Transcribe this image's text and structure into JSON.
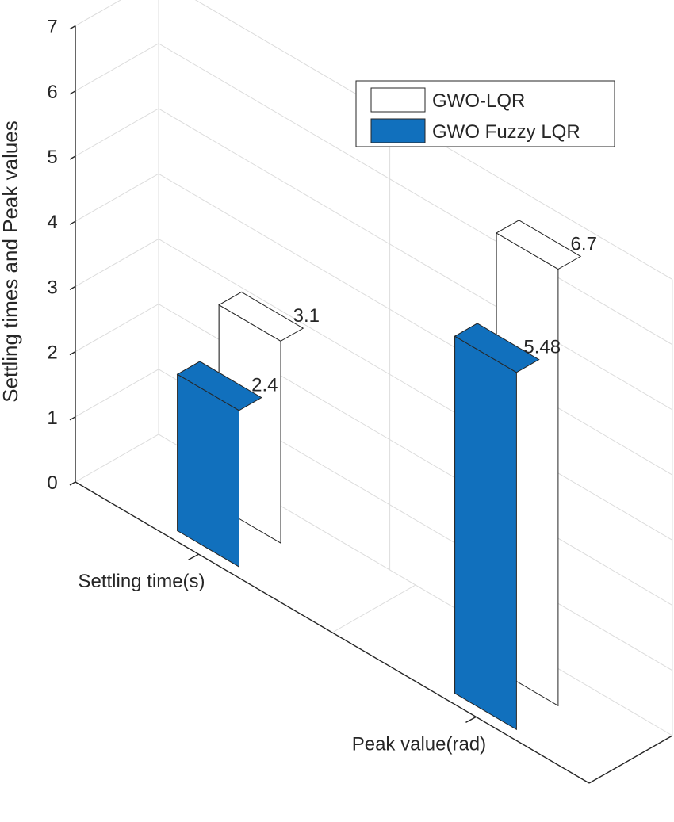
{
  "chart_data": {
    "type": "bar",
    "subtype": "3d-grouped",
    "title": "",
    "xlabel": "",
    "ylabel": "Settling times and Peak values",
    "categories": [
      "Settling time(s)",
      "Peak value(rad)"
    ],
    "series": [
      {
        "name": "GWO-LQR",
        "values": [
          3.1,
          6.7
        ],
        "color": "#ffffff"
      },
      {
        "name": "GWO Fuzzy LQR",
        "values": [
          2.4,
          5.48
        ],
        "color": "#1170bd"
      }
    ],
    "data_labels": [
      [
        "3.1",
        "6.7"
      ],
      [
        "2.4",
        "5.48"
      ]
    ],
    "ylim": [
      0,
      7
    ],
    "yticks": [
      "0",
      "1",
      "2",
      "3",
      "4",
      "5",
      "6",
      "7"
    ],
    "grid": true,
    "legend": "top-right"
  }
}
